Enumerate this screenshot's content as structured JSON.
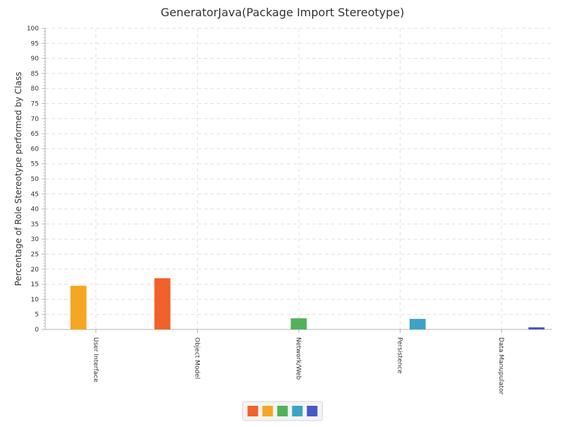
{
  "chart_data": {
    "type": "bar",
    "title": "GeneratorJava(Package Import Stereotype)",
    "xlabel": "",
    "ylabel": "Percentage of Role Stereotype performed by Class",
    "ylim": [
      0,
      100
    ],
    "yticks": [
      0,
      5,
      10,
      15,
      20,
      25,
      30,
      35,
      40,
      45,
      50,
      55,
      60,
      65,
      70,
      75,
      80,
      85,
      90,
      95,
      100
    ],
    "categories": [
      "User Interface",
      "Object Model",
      "Network/Web",
      "Persistence",
      "Data Manupulator"
    ],
    "series": [
      {
        "color": "#f0612b",
        "values": [
          0,
          17,
          0,
          0,
          0
        ]
      },
      {
        "color": "#f5a623",
        "values": [
          14.5,
          0,
          0,
          0,
          0
        ]
      },
      {
        "color": "#52b25a",
        "values": [
          0,
          0,
          3.7,
          0,
          0
        ]
      },
      {
        "color": "#3ca3c4",
        "values": [
          0,
          0,
          0,
          3.5,
          0
        ]
      },
      {
        "color": "#4558c8",
        "values": [
          0,
          0,
          0,
          0,
          0.7
        ]
      }
    ],
    "grid": true,
    "legend_position": "bottom-center"
  }
}
